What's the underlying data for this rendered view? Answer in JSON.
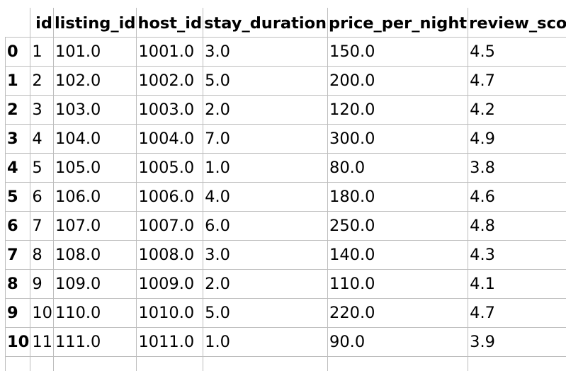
{
  "table": {
    "columns": [
      "id",
      "listing_id",
      "host_id",
      "stay_duration",
      "price_per_night",
      "review_score"
    ],
    "rows": [
      {
        "index": "0",
        "cells": [
          "1",
          "101.0",
          "1001.0",
          "3.0",
          "150.0",
          "4.5"
        ]
      },
      {
        "index": "1",
        "cells": [
          "2",
          "102.0",
          "1002.0",
          "5.0",
          "200.0",
          "4.7"
        ]
      },
      {
        "index": "2",
        "cells": [
          "3",
          "103.0",
          "1003.0",
          "2.0",
          "120.0",
          "4.2"
        ]
      },
      {
        "index": "3",
        "cells": [
          "4",
          "104.0",
          "1004.0",
          "7.0",
          "300.0",
          "4.9"
        ]
      },
      {
        "index": "4",
        "cells": [
          "5",
          "105.0",
          "1005.0",
          "1.0",
          "80.0",
          "3.8"
        ]
      },
      {
        "index": "5",
        "cells": [
          "6",
          "106.0",
          "1006.0",
          "4.0",
          "180.0",
          "4.6"
        ]
      },
      {
        "index": "6",
        "cells": [
          "7",
          "107.0",
          "1007.0",
          "6.0",
          "250.0",
          "4.8"
        ]
      },
      {
        "index": "7",
        "cells": [
          "8",
          "108.0",
          "1008.0",
          "3.0",
          "140.0",
          "4.3"
        ]
      },
      {
        "index": "8",
        "cells": [
          "9",
          "109.0",
          "1009.0",
          "2.0",
          "110.0",
          "4.1"
        ]
      },
      {
        "index": "9",
        "cells": [
          "10",
          "110.0",
          "1010.0",
          "5.0",
          "220.0",
          "4.7"
        ]
      },
      {
        "index": "10",
        "cells": [
          "11",
          "111.0",
          "1011.0",
          "1.0",
          "90.0",
          "3.9"
        ]
      }
    ]
  }
}
